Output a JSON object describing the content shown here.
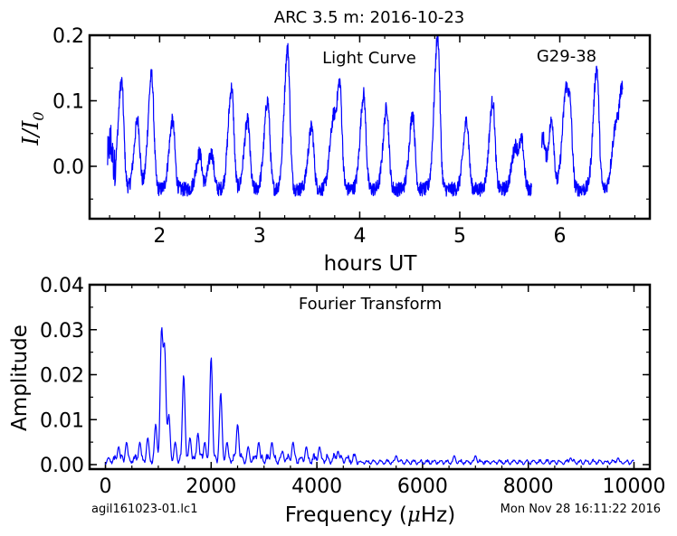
{
  "title": "ARC 3.5 m:  2016-10-23",
  "footer": {
    "left": "agil161023-01.lc1",
    "right": "Mon Nov 28 16:11:22 2016"
  },
  "colors": {
    "line": "#0000ff",
    "axes": "#000000"
  },
  "chart_data": [
    {
      "type": "line",
      "title": "Light Curve",
      "annotation": "G29-38",
      "xlabel": "hours UT",
      "ylabel": "I/I0",
      "xlim": [
        1.3,
        6.9
      ],
      "ylim": [
        -0.08,
        0.2
      ],
      "xticks": [
        2,
        3,
        4,
        5,
        6
      ],
      "xticklabels": [
        "2",
        "3",
        "4",
        "5",
        "6"
      ],
      "yticks": [
        0.0,
        0.1,
        0.2
      ],
      "yticklabels": [
        "0.0",
        "0.1",
        "0.2"
      ],
      "peaks": [
        {
          "x": 1.51,
          "y": 0.03
        },
        {
          "x": 1.62,
          "y": 0.13
        },
        {
          "x": 1.78,
          "y": 0.07
        },
        {
          "x": 1.92,
          "y": 0.14
        },
        {
          "x": 2.13,
          "y": 0.07
        },
        {
          "x": 2.4,
          "y": 0.02
        },
        {
          "x": 2.52,
          "y": 0.02
        },
        {
          "x": 2.72,
          "y": 0.12
        },
        {
          "x": 2.88,
          "y": 0.07
        },
        {
          "x": 3.08,
          "y": 0.1
        },
        {
          "x": 3.28,
          "y": 0.18
        },
        {
          "x": 3.52,
          "y": 0.06
        },
        {
          "x": 3.73,
          "y": 0.05
        },
        {
          "x": 3.8,
          "y": 0.13
        },
        {
          "x": 4.04,
          "y": 0.11
        },
        {
          "x": 4.27,
          "y": 0.09
        },
        {
          "x": 4.53,
          "y": 0.08
        },
        {
          "x": 4.78,
          "y": 0.2
        },
        {
          "x": 5.07,
          "y": 0.07
        },
        {
          "x": 5.33,
          "y": 0.1
        },
        {
          "x": 5.55,
          "y": 0.02
        },
        {
          "x": 5.62,
          "y": 0.04
        },
        {
          "x": 5.83,
          "y": 0.04
        },
        {
          "x": 5.92,
          "y": 0.07
        },
        {
          "x": 6.05,
          "y": 0.06
        },
        {
          "x": 6.1,
          "y": 0.1
        },
        {
          "x": 6.37,
          "y": 0.15
        },
        {
          "x": 6.55,
          "y": 0.04
        },
        {
          "x": 6.62,
          "y": 0.12
        }
      ],
      "baseline": -0.035,
      "x_start": 1.48,
      "x_end": 6.63,
      "gap": [
        5.72,
        5.82
      ]
    },
    {
      "type": "line",
      "title": "Fourier Transform",
      "xlabel": "Frequency (μHz)",
      "ylabel": "Amplitude",
      "xlim": [
        -300,
        10300
      ],
      "ylim": [
        -0.001,
        0.04
      ],
      "xticks": [
        0,
        2000,
        4000,
        6000,
        8000,
        10000
      ],
      "xticklabels": [
        "0",
        "2000",
        "4000",
        "6000",
        "8000",
        "10000"
      ],
      "yticks": [
        0.0,
        0.01,
        0.02,
        0.03,
        0.04
      ],
      "yticklabels": [
        "0.00",
        "0.01",
        "0.02",
        "0.03",
        "0.04"
      ],
      "peaks": [
        {
          "x": 250,
          "y": 0.004
        },
        {
          "x": 400,
          "y": 0.005
        },
        {
          "x": 650,
          "y": 0.005
        },
        {
          "x": 800,
          "y": 0.006
        },
        {
          "x": 950,
          "y": 0.009
        },
        {
          "x": 1060,
          "y": 0.029
        },
        {
          "x": 1120,
          "y": 0.025
        },
        {
          "x": 1200,
          "y": 0.011
        },
        {
          "x": 1320,
          "y": 0.005
        },
        {
          "x": 1480,
          "y": 0.02
        },
        {
          "x": 1600,
          "y": 0.006
        },
        {
          "x": 1750,
          "y": 0.007
        },
        {
          "x": 1880,
          "y": 0.005
        },
        {
          "x": 2000,
          "y": 0.024
        },
        {
          "x": 2180,
          "y": 0.016
        },
        {
          "x": 2300,
          "y": 0.005
        },
        {
          "x": 2500,
          "y": 0.009
        },
        {
          "x": 2700,
          "y": 0.004
        },
        {
          "x": 2900,
          "y": 0.005
        },
        {
          "x": 3150,
          "y": 0.005
        },
        {
          "x": 3350,
          "y": 0.003
        },
        {
          "x": 3550,
          "y": 0.005
        },
        {
          "x": 3800,
          "y": 0.004
        },
        {
          "x": 4050,
          "y": 0.004
        },
        {
          "x": 4400,
          "y": 0.003
        },
        {
          "x": 5500,
          "y": 0.002
        },
        {
          "x": 6600,
          "y": 0.002
        },
        {
          "x": 7000,
          "y": 0.002
        },
        {
          "x": 8800,
          "y": 0.0015
        },
        {
          "x": 9700,
          "y": 0.0015
        }
      ]
    }
  ]
}
